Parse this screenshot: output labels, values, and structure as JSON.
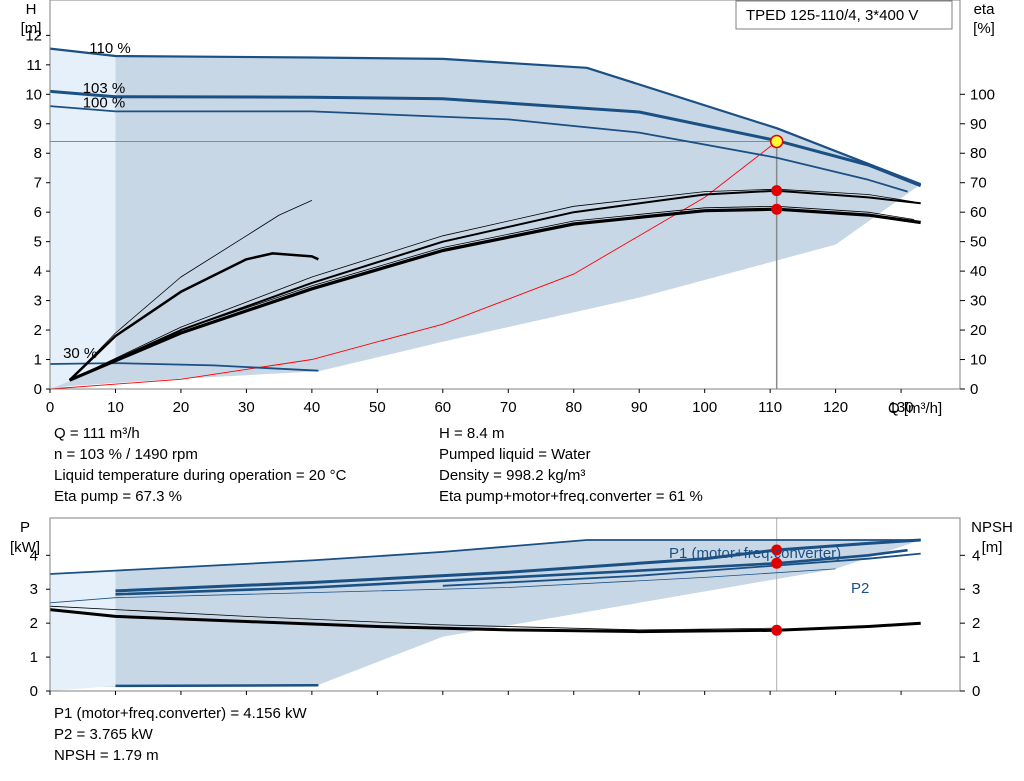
{
  "chart_data": [
    {
      "type": "line",
      "title": "TPED 125-110/4, 3*400 V",
      "y_axis_label_line1": "H",
      "y_axis_label_line2": "[m]",
      "y2_axis_label_line1": "eta",
      "y2_axis_label_line2": "[%]",
      "xlabel": "Q [m³/h]",
      "xlim": [
        0,
        139
      ],
      "ylim": [
        0,
        13.2
      ],
      "y2lim": [
        0,
        132
      ],
      "x_ticks": [
        0,
        10,
        20,
        30,
        40,
        50,
        60,
        70,
        80,
        90,
        100,
        110,
        120,
        130
      ],
      "y_ticks": [
        0,
        1,
        2,
        3,
        4,
        5,
        6,
        7,
        8,
        9,
        10,
        11,
        12
      ],
      "y2_ticks": [
        0,
        10,
        20,
        30,
        40,
        50,
        60,
        70,
        80,
        90,
        100
      ],
      "grid": false,
      "colors": {
        "curve": "#1a5084",
        "region": "#c8d7e6",
        "region_light": "#e6f0fa",
        "efficiency": "#000000",
        "system": "#ff0000",
        "marker": "#e00000",
        "op_point": "#ffff33"
      },
      "speed_labels": [
        {
          "text": "110 %",
          "x": 6,
          "y": 11.4
        },
        {
          "text": "103 %",
          "x": 5,
          "y": 10.05
        },
        {
          "text": "100 %",
          "x": 5,
          "y": 9.55
        },
        {
          "text": "30 %",
          "x": 2,
          "y": 1.05
        }
      ],
      "region_band": [
        [
          0,
          11.55
        ],
        [
          10,
          11.3
        ],
        [
          40,
          11.25
        ],
        [
          60,
          11.2
        ],
        [
          82,
          10.9
        ],
        [
          111,
          8.85
        ],
        [
          133,
          6.95
        ],
        [
          120,
          4.9
        ],
        [
          90,
          3.1
        ],
        [
          60,
          1.6
        ],
        [
          41,
          0.6
        ],
        [
          20,
          0.35
        ],
        [
          3,
          0.1
        ],
        [
          0,
          0
        ]
      ],
      "light_band": [
        [
          0,
          0
        ],
        [
          0,
          11.55
        ],
        [
          10,
          11.3
        ],
        [
          10,
          0.9
        ]
      ],
      "head_curves": [
        {
          "name": "110 %",
          "points": [
            [
              0,
              11.55
            ],
            [
              10,
              11.3
            ],
            [
              40,
              11.25
            ],
            [
              60,
              11.2
            ],
            [
              82,
              10.9
            ],
            [
              111,
              8.85
            ],
            [
              133,
              6.95
            ]
          ],
          "width": 2.2
        },
        {
          "name": "103 %",
          "points": [
            [
              0,
              10.1
            ],
            [
              10,
              9.92
            ],
            [
              40,
              9.9
            ],
            [
              60,
              9.85
            ],
            [
              90,
              9.4
            ],
            [
              111,
              8.43
            ],
            [
              125,
              7.6
            ],
            [
              133,
              6.9
            ]
          ],
          "width": 3.0
        },
        {
          "name": "100 %",
          "points": [
            [
              0,
              9.6
            ],
            [
              10,
              9.42
            ],
            [
              40,
              9.42
            ],
            [
              70,
              9.15
            ],
            [
              90,
              8.7
            ],
            [
              111,
              7.85
            ],
            [
              125,
              7.1
            ],
            [
              131,
              6.7
            ]
          ],
          "width": 1.8
        },
        {
          "name": "30 %",
          "points": [
            [
              0,
              0.85
            ],
            [
              10,
              0.88
            ],
            [
              25,
              0.8
            ],
            [
              41,
              0.62
            ]
          ],
          "width": 1.8
        }
      ],
      "eta_curves": [
        {
          "points": [
            [
              3,
              0.3
            ],
            [
              10,
              1.9
            ],
            [
              20,
              3.8
            ],
            [
              30,
              5.2
            ],
            [
              35,
              5.9
            ],
            [
              40,
              6.4
            ]
          ],
          "width": 0.8,
          "eta": false,
          "raw": [
            [
              3,
              3
            ],
            [
              10,
              19
            ],
            [
              20,
              38
            ],
            [
              30,
              52
            ],
            [
              35,
              59
            ],
            [
              40,
              64
            ]
          ]
        },
        {
          "points": [
            [
              3,
              3
            ],
            [
              10,
              18
            ],
            [
              20,
              33
            ],
            [
              30,
              44
            ],
            [
              34,
              46
            ],
            [
              40,
              45
            ],
            [
              41,
              44
            ]
          ],
          "width": 2.5
        },
        {
          "points": [
            [
              3,
              3
            ],
            [
              20,
              20
            ],
            [
              40,
              36
            ],
            [
              60,
              50
            ],
            [
              80,
              60
            ],
            [
              100,
              66
            ],
            [
              111,
              67.3
            ],
            [
              125,
              65
            ],
            [
              133,
              63
            ]
          ],
          "width": 2.0
        },
        {
          "points": [
            [
              3,
              3
            ],
            [
              20,
              21
            ],
            [
              40,
              38
            ],
            [
              60,
              52
            ],
            [
              80,
              62
            ],
            [
              100,
              67
            ],
            [
              111,
              67.8
            ],
            [
              125,
              66
            ],
            [
              132,
              63.5
            ]
          ],
          "width": 0.8
        },
        {
          "points": [
            [
              3,
              3
            ],
            [
              20,
              19
            ],
            [
              40,
              34
            ],
            [
              60,
              47
            ],
            [
              80,
              56
            ],
            [
              100,
              60.5
            ],
            [
              111,
              61
            ],
            [
              125,
              59
            ],
            [
              133,
              56.5
            ]
          ],
          "width": 3.2
        },
        {
          "points": [
            [
              3,
              3
            ],
            [
              20,
              20
            ],
            [
              40,
              35
            ],
            [
              60,
              48
            ],
            [
              80,
              57
            ],
            [
              100,
              61.5
            ],
            [
              111,
              62
            ],
            [
              125,
              60
            ],
            [
              132,
              57.5
            ]
          ],
          "width": 0.8
        }
      ],
      "system_curve": [
        [
          0,
          0
        ],
        [
          20,
          0.33
        ],
        [
          40,
          1.0
        ],
        [
          60,
          2.2
        ],
        [
          80,
          3.9
        ],
        [
          100,
          6.5
        ],
        [
          111,
          8.4
        ]
      ],
      "operating_point": {
        "x": 111,
        "head": 8.4,
        "eta_pump": 67.3,
        "eta_total": 61
      },
      "reference_line_head": 8.4
    },
    {
      "type": "line",
      "y_axis_label_line1": "P",
      "y_axis_label_line2": "[kW]",
      "y2_axis_label_line1": "NPSH",
      "y2_axis_label_line2": "[m]",
      "xlim": [
        0,
        139
      ],
      "ylim": [
        0,
        5.1
      ],
      "y_ticks": [
        0,
        1,
        2,
        3,
        4
      ],
      "y2_ticks": [
        0,
        1,
        2,
        3,
        4
      ],
      "series_labels": {
        "p1": "P1 (motor+freq.converter)",
        "p2": "P2"
      },
      "region_band": [
        [
          0,
          3.45
        ],
        [
          10,
          3.55
        ],
        [
          40,
          3.85
        ],
        [
          60,
          4.1
        ],
        [
          82,
          4.45
        ],
        [
          111,
          4.45
        ],
        [
          133,
          4.45
        ],
        [
          120,
          3.6
        ],
        [
          90,
          2.6
        ],
        [
          60,
          1.6
        ],
        [
          41,
          0.18
        ],
        [
          20,
          0.15
        ],
        [
          0,
          0.1
        ]
      ],
      "light_band": [
        [
          0,
          0
        ],
        [
          0,
          3.45
        ],
        [
          10,
          3.55
        ],
        [
          10,
          0.15
        ]
      ],
      "power_curves": [
        {
          "points": [
            [
              0,
              3.45
            ],
            [
              10,
              3.55
            ],
            [
              40,
              3.85
            ],
            [
              60,
              4.1
            ],
            [
              82,
              4.45
            ],
            [
              111,
              4.45
            ],
            [
              133,
              4.45
            ]
          ],
          "width": 1.8
        },
        {
          "points": [
            [
              10,
              2.95
            ],
            [
              40,
              3.2
            ],
            [
              70,
              3.5
            ],
            [
              100,
              3.9
            ],
            [
              111,
              4.156
            ],
            [
              125,
              4.35
            ],
            [
              133,
              4.45
            ]
          ],
          "width": 3.0
        },
        {
          "points": [
            [
              10,
              2.85
            ],
            [
              40,
              3.05
            ],
            [
              70,
              3.35
            ],
            [
              100,
              3.65
            ],
            [
              111,
              3.765
            ],
            [
              125,
              4.0
            ],
            [
              131,
              4.15
            ]
          ],
          "width": 2.6
        },
        {
          "points": [
            [
              60,
              3.1
            ],
            [
              90,
              3.4
            ],
            [
              111,
              3.7
            ],
            [
              125,
              3.9
            ],
            [
              133,
              4.05
            ]
          ],
          "width": 1.8
        },
        {
          "points": [
            [
              0,
              2.6
            ],
            [
              10,
              2.75
            ],
            [
              40,
              2.9
            ],
            [
              70,
              3.05
            ],
            [
              100,
              3.35
            ],
            [
              120,
              3.6
            ]
          ],
          "width": 0.8
        },
        {
          "points": [
            [
              10,
              0.15
            ],
            [
              25,
              0.16
            ],
            [
              41,
              0.17
            ]
          ],
          "width": 2.5
        }
      ],
      "npsh_curves": [
        {
          "points": [
            [
              0,
              2.4
            ],
            [
              10,
              2.2
            ],
            [
              30,
              2.05
            ],
            [
              50,
              1.9
            ],
            [
              70,
              1.8
            ],
            [
              90,
              1.75
            ],
            [
              111,
              1.79
            ],
            [
              125,
              1.9
            ],
            [
              133,
              2.0
            ]
          ],
          "width": 3.0
        },
        {
          "points": [
            [
              0,
              2.5
            ],
            [
              30,
              2.2
            ],
            [
              60,
              1.95
            ],
            [
              90,
              1.8
            ],
            [
              111,
              1.85
            ]
          ],
          "width": 0.8
        }
      ],
      "operating_point": {
        "x": 111,
        "p1": 4.156,
        "p2": 3.765,
        "npsh": 1.79
      }
    }
  ],
  "info_block": {
    "q": "Q = 111 m³/h",
    "n": "n = 103 % / 1490 rpm",
    "temperature": "Liquid temperature during operation = 20 °C",
    "eta_pump": "Eta pump = 67.3 %",
    "h": "H = 8.4 m",
    "liquid": "Pumped liquid = Water",
    "density": "Density = 998.2 kg/m³",
    "eta_total": "Eta pump+motor+freq.converter = 61 %"
  },
  "bottom_info": {
    "p1": "P1 (motor+freq.converter) = 4.156 kW",
    "p2": "P2 = 3.765 kW",
    "npsh": "NPSH = 1.79 m"
  }
}
